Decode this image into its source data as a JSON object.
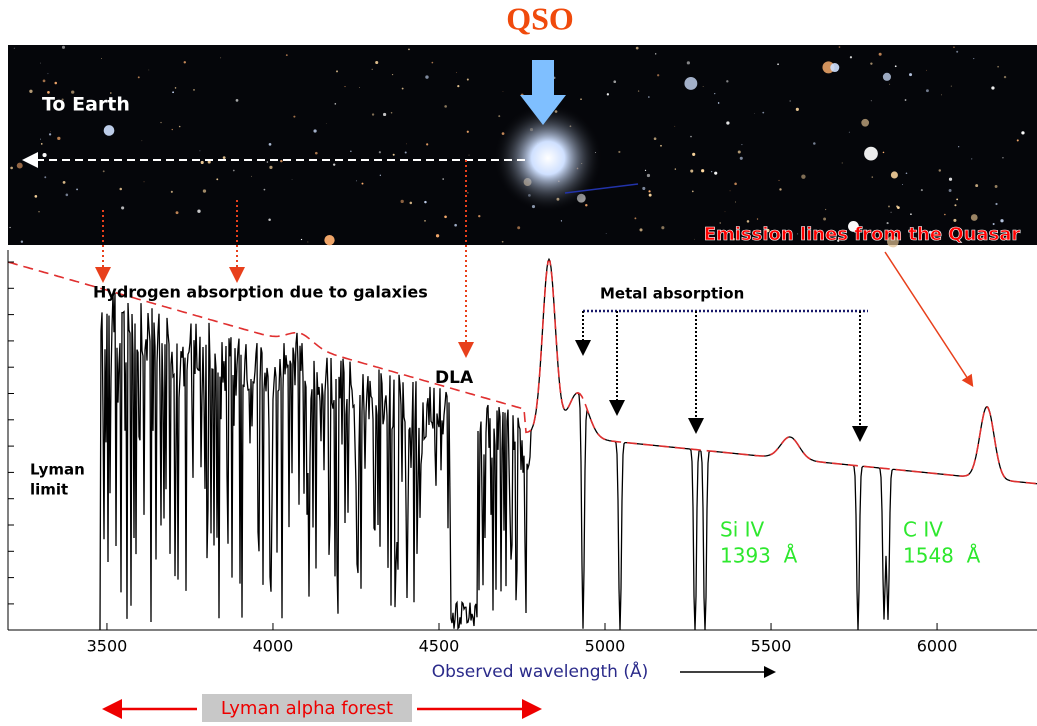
{
  "title": "QSO",
  "image": {
    "earth_label": "To Earth",
    "emission_label": "Emission lines from the Quasar"
  },
  "annotations": {
    "hydrogen": "Hydrogen absorption due to galaxies",
    "metal": "Metal absorption",
    "dla": "DLA",
    "lyman_limit": [
      "Lyman",
      "limit"
    ]
  },
  "lines": [
    {
      "name": "Si IV",
      "wavelength": "1393  Å"
    },
    {
      "name": "C IV",
      "wavelength": "1548  Å"
    }
  ],
  "axis": {
    "label": "Observed wavelength (Å)",
    "xlim": [
      3202,
      6301
    ],
    "xticks": [
      3500,
      4000,
      4500,
      5000,
      5500,
      6000
    ]
  },
  "forest_label": "Lyman alpha forest"
}
